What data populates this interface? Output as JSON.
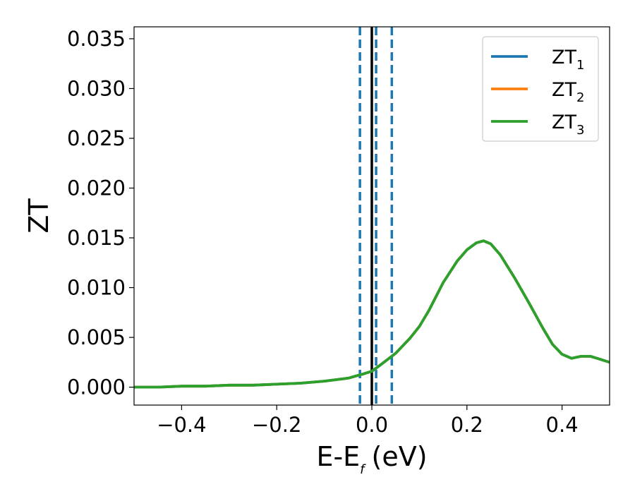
{
  "chart_data": {
    "type": "line",
    "xlabel": "E-E",
    "xlabel_sub": "f",
    "xlabel_unit": "(eV)",
    "ylabel": "ZT",
    "xlim": [
      -0.5,
      0.5
    ],
    "ylim": [
      -0.0018,
      0.0362
    ],
    "xticks": [
      -0.4,
      -0.2,
      0.0,
      0.2,
      0.4
    ],
    "xtick_labels": [
      "−0.4",
      "−0.2",
      "0.0",
      "0.2",
      "0.4"
    ],
    "yticks": [
      0.0,
      0.005,
      0.01,
      0.015,
      0.02,
      0.025,
      0.03,
      0.035
    ],
    "ytick_labels": [
      "0.000",
      "0.005",
      "0.010",
      "0.015",
      "0.020",
      "0.025",
      "0.030",
      "0.035"
    ],
    "grid": false,
    "legend_position": "top-right",
    "series": [
      {
        "name": "ZT",
        "name_sub": "1",
        "color": "#1f77b4",
        "x": [
          -0.5,
          -0.45,
          -0.4,
          -0.35,
          -0.3,
          -0.25,
          -0.2,
          -0.15,
          -0.1,
          -0.05,
          -0.02,
          0.0,
          0.02,
          0.05,
          0.08,
          0.1,
          0.12,
          0.15,
          0.18,
          0.2,
          0.22,
          0.235,
          0.25,
          0.27,
          0.3,
          0.33,
          0.36,
          0.38,
          0.4,
          0.42,
          0.44,
          0.46,
          0.48,
          0.5
        ],
        "y": [
          0.0,
          0.0,
          0.0001,
          0.0001,
          0.0002,
          0.0002,
          0.0003,
          0.0004,
          0.0006,
          0.0009,
          0.0013,
          0.0016,
          0.0023,
          0.0034,
          0.0049,
          0.0061,
          0.0077,
          0.0105,
          0.0127,
          0.0138,
          0.0145,
          0.0147,
          0.0144,
          0.0133,
          0.011,
          0.0085,
          0.0059,
          0.0043,
          0.0033,
          0.0029,
          0.0031,
          0.0031,
          0.0028,
          0.0025
        ]
      },
      {
        "name": "ZT",
        "name_sub": "2",
        "color": "#ff7f0e",
        "x": [
          -0.5,
          -0.45,
          -0.4,
          -0.35,
          -0.3,
          -0.25,
          -0.2,
          -0.15,
          -0.1,
          -0.05,
          -0.02,
          0.0,
          0.02,
          0.05,
          0.08,
          0.1,
          0.12,
          0.15,
          0.18,
          0.2,
          0.22,
          0.235,
          0.25,
          0.27,
          0.3,
          0.33,
          0.36,
          0.38,
          0.4,
          0.42,
          0.44,
          0.46,
          0.48,
          0.5
        ],
        "y": [
          0.0,
          0.0,
          0.0001,
          0.0001,
          0.0002,
          0.0002,
          0.0003,
          0.0004,
          0.0006,
          0.0009,
          0.0013,
          0.0016,
          0.0023,
          0.0034,
          0.0049,
          0.0061,
          0.0077,
          0.0105,
          0.0127,
          0.0138,
          0.0145,
          0.0147,
          0.0144,
          0.0133,
          0.011,
          0.0085,
          0.0059,
          0.0043,
          0.0033,
          0.0029,
          0.0031,
          0.0031,
          0.0028,
          0.0025
        ]
      },
      {
        "name": "ZT",
        "name_sub": "3",
        "color": "#2ca02c",
        "x": [
          -0.5,
          -0.45,
          -0.4,
          -0.35,
          -0.3,
          -0.25,
          -0.2,
          -0.15,
          -0.1,
          -0.05,
          -0.02,
          0.0,
          0.02,
          0.05,
          0.08,
          0.1,
          0.12,
          0.15,
          0.18,
          0.2,
          0.22,
          0.235,
          0.25,
          0.27,
          0.3,
          0.33,
          0.36,
          0.38,
          0.4,
          0.42,
          0.44,
          0.46,
          0.48,
          0.5
        ],
        "y": [
          0.0,
          0.0,
          0.0001,
          0.0001,
          0.0002,
          0.0002,
          0.0003,
          0.0004,
          0.0006,
          0.0009,
          0.0013,
          0.0016,
          0.0023,
          0.0034,
          0.0049,
          0.0061,
          0.0077,
          0.0105,
          0.0127,
          0.0138,
          0.0145,
          0.0147,
          0.0144,
          0.0133,
          0.011,
          0.0085,
          0.0059,
          0.0043,
          0.0033,
          0.0029,
          0.0031,
          0.0031,
          0.0028,
          0.0025
        ]
      }
    ],
    "vlines": [
      {
        "x": 0.0,
        "color": "#000000",
        "style": "solid"
      },
      {
        "x": -0.025,
        "color": "#1f77b4",
        "style": "dashed"
      },
      {
        "x": 0.009,
        "color": "#1f77b4",
        "style": "dashed"
      },
      {
        "x": 0.042,
        "color": "#1f77b4",
        "style": "dashed"
      }
    ]
  }
}
